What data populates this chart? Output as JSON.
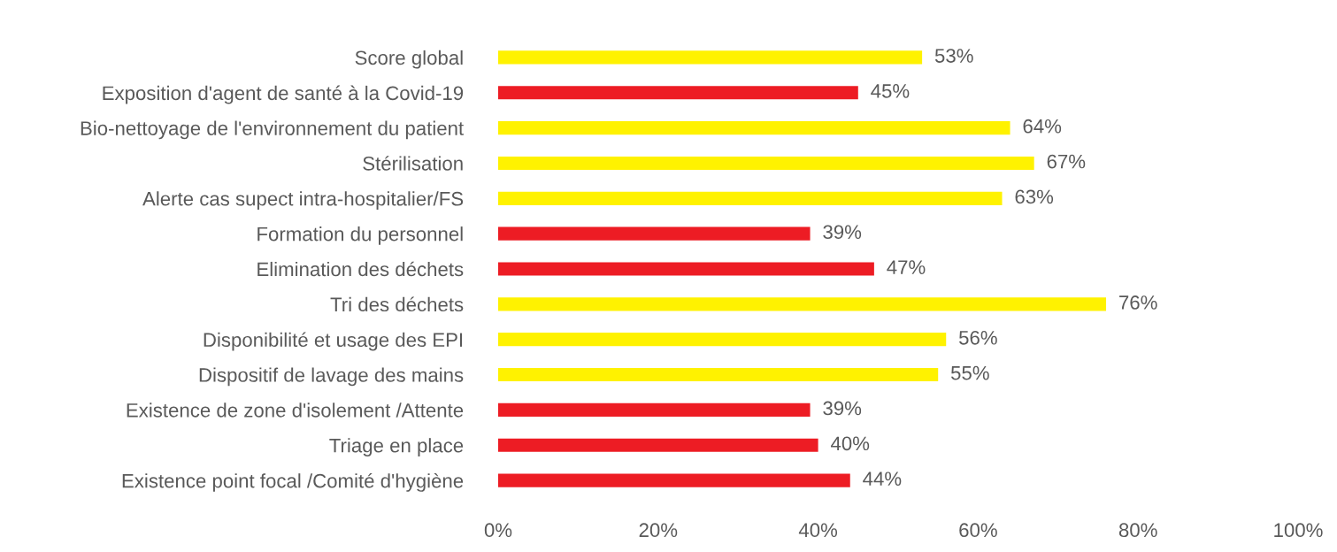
{
  "chart_data": {
    "type": "bar",
    "orientation": "horizontal",
    "categories": [
      "Score global",
      "Exposition d'agent de santé à la Covid-19",
      "Bio-nettoyage de l'environnement du patient",
      "Stérilisation",
      "Alerte cas supect intra-hospitalier/FS",
      "Formation du personnel",
      "Elimination des déchets",
      "Tri des déchets",
      "Disponibilité et usage des EPI",
      "Dispositif de lavage des mains",
      "Existence de zone d'isolement /Attente",
      "Triage en place",
      "Existence point focal /Comité d'hygiène"
    ],
    "values": [
      53,
      45,
      64,
      67,
      63,
      39,
      47,
      76,
      56,
      55,
      39,
      40,
      44
    ],
    "colors": [
      "#fff200",
      "#ed1c24",
      "#fff200",
      "#fff200",
      "#fff200",
      "#ed1c24",
      "#ed1c24",
      "#fff200",
      "#fff200",
      "#fff200",
      "#ed1c24",
      "#ed1c24",
      "#ed1c24"
    ],
    "value_labels": [
      "53%",
      "45%",
      "64%",
      "67%",
      "63%",
      "39%",
      "47%",
      "76%",
      "56%",
      "55%",
      "39%",
      "40%",
      "44%"
    ],
    "xlim": [
      0,
      100
    ],
    "xticks": [
      {
        "value": 0,
        "label": "0%"
      },
      {
        "value": 20,
        "label": "20%"
      },
      {
        "value": 40,
        "label": "40%"
      },
      {
        "value": 60,
        "label": "60%"
      },
      {
        "value": 80,
        "label": "80%"
      },
      {
        "value": 100,
        "label": "100%"
      }
    ],
    "grid": false
  }
}
